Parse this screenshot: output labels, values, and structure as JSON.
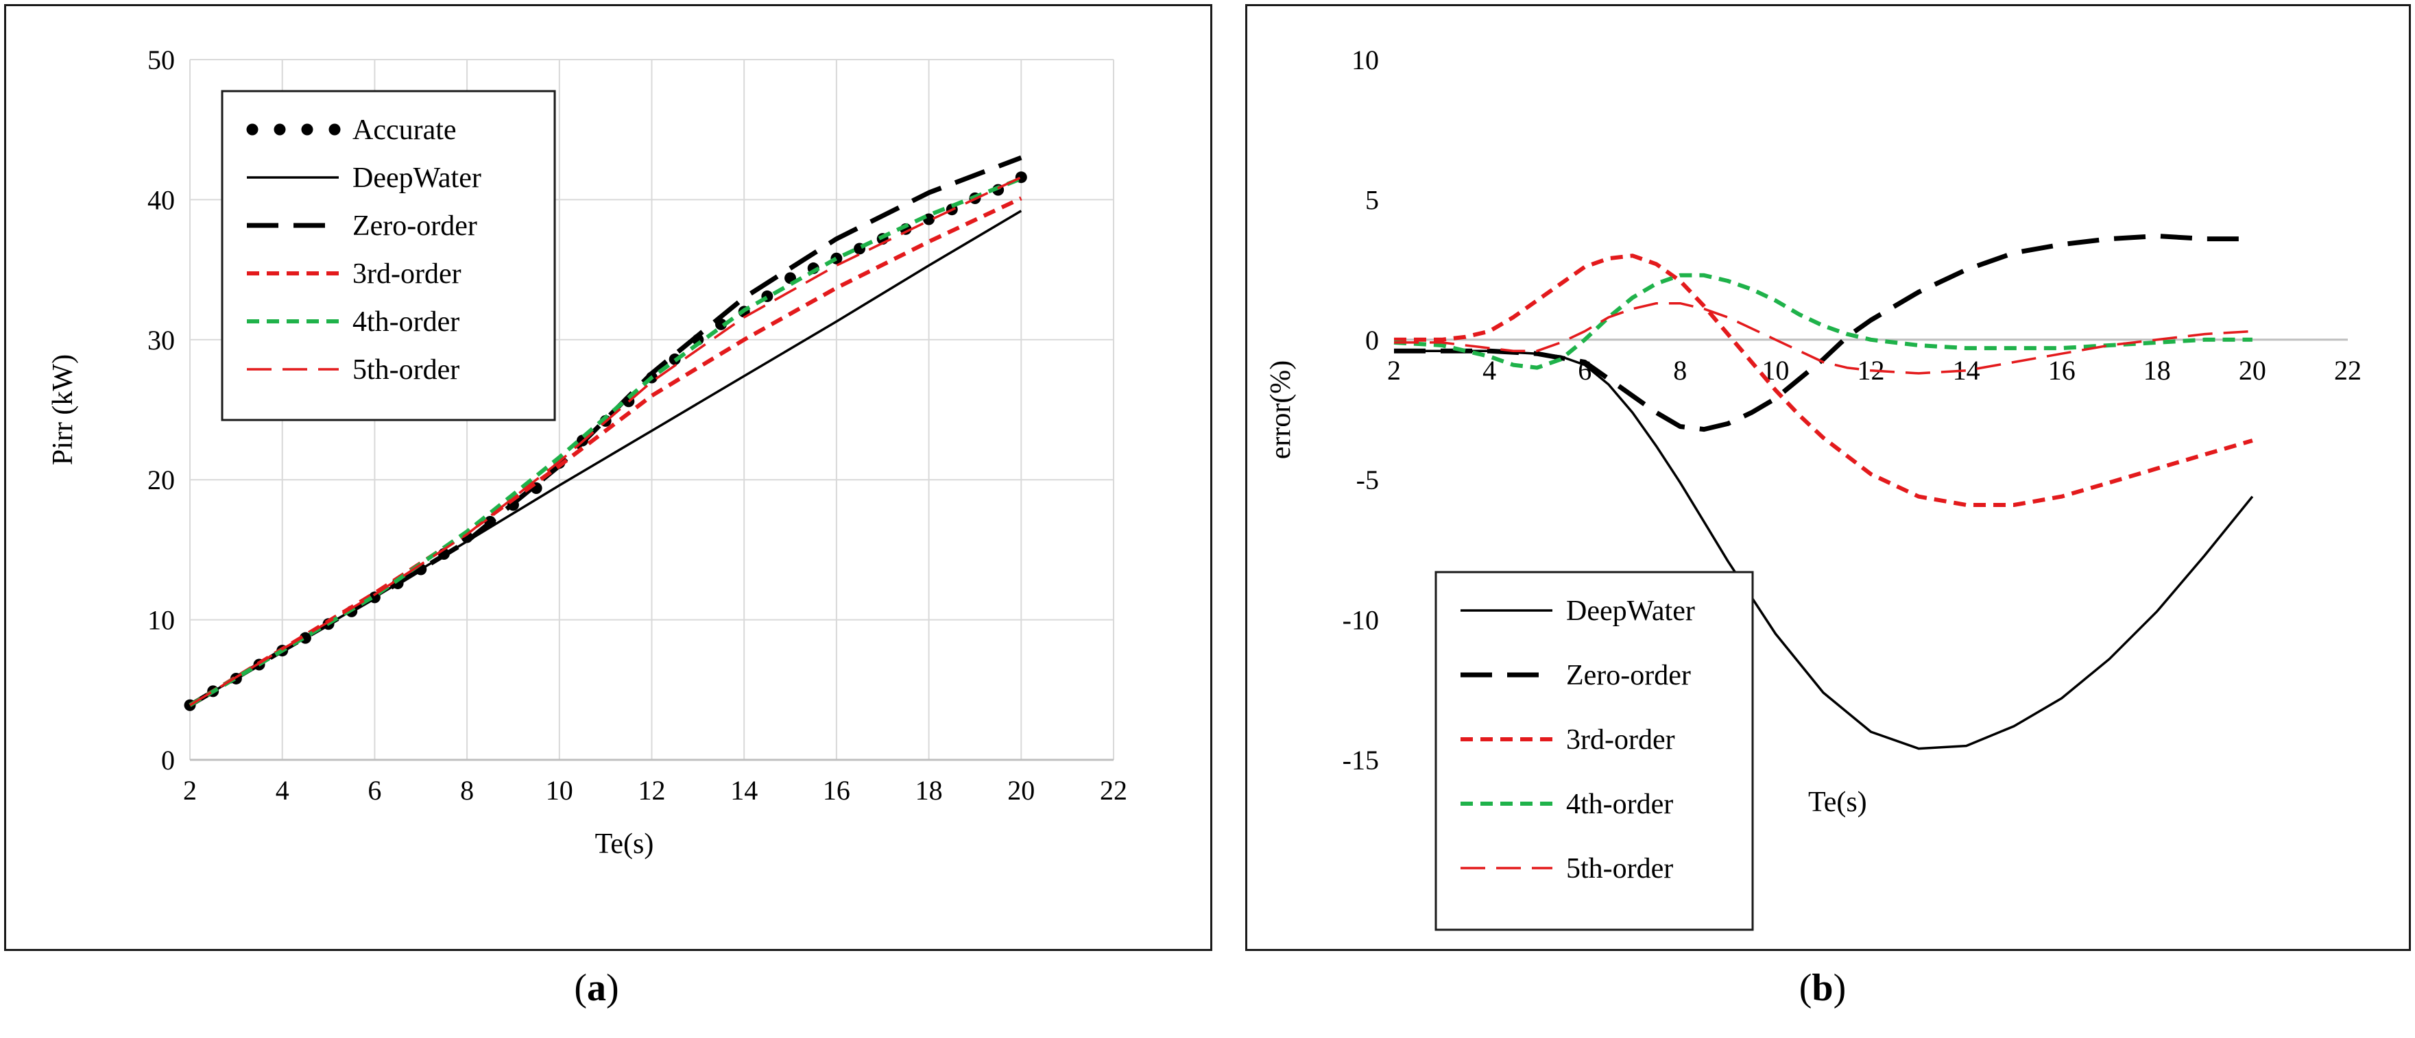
{
  "chart_data": [
    {
      "id": "a",
      "type": "line",
      "panel_label": "a",
      "xlabel": "Te(s)",
      "ylabel": "Pirr (kW)",
      "xlim": [
        2,
        22
      ],
      "ylim": [
        0,
        50
      ],
      "xticks": [
        2,
        4,
        6,
        8,
        10,
        12,
        14,
        16,
        18,
        20,
        22
      ],
      "yticks": [
        0,
        10,
        20,
        30,
        40,
        50
      ],
      "grid": true,
      "legend_position": "top-left",
      "series": [
        {
          "name": "Accurate",
          "style": "dots",
          "color": "#000000",
          "x": [
            2,
            2.5,
            3,
            3.5,
            4,
            4.5,
            5,
            5.5,
            6,
            6.5,
            7,
            7.5,
            8,
            8.5,
            9,
            9.5,
            10,
            10.5,
            11,
            11.5,
            12,
            12.5,
            13,
            13.5,
            14,
            14.5,
            15,
            15.5,
            16,
            16.5,
            17,
            17.5,
            18,
            18.5,
            19,
            19.5,
            20
          ],
          "y": [
            3.9,
            4.9,
            5.8,
            6.8,
            7.8,
            8.7,
            9.7,
            10.6,
            11.6,
            12.6,
            13.6,
            14.7,
            15.9,
            17.0,
            18.2,
            19.4,
            21.2,
            22.8,
            24.2,
            25.6,
            27.3,
            28.6,
            30.0,
            31.1,
            32.0,
            33.1,
            34.4,
            35.1,
            35.8,
            36.5,
            37.2,
            37.9,
            38.6,
            39.3,
            40.1,
            40.7,
            41.6
          ]
        },
        {
          "name": "DeepWater",
          "style": "solid",
          "color": "#000000",
          "x": [
            2,
            4,
            6,
            8,
            10,
            12,
            14,
            16,
            18,
            20
          ],
          "y": [
            3.9,
            7.8,
            11.6,
            15.6,
            19.6,
            23.5,
            27.4,
            31.3,
            35.3,
            39.2
          ]
        },
        {
          "name": "Zero-order",
          "style": "longdash",
          "color": "#000000",
          "x": [
            2,
            4,
            6,
            8,
            10,
            12,
            14,
            16,
            18,
            20
          ],
          "y": [
            3.9,
            7.8,
            11.6,
            15.6,
            21.0,
            27.6,
            33.0,
            37.2,
            40.5,
            43.0
          ]
        },
        {
          "name": "3rd-order",
          "style": "dash",
          "color": "#e31a1c",
          "x": [
            2,
            4,
            6,
            8,
            10,
            12,
            14,
            16,
            18,
            20
          ],
          "y": [
            3.9,
            7.9,
            11.9,
            16.2,
            21.0,
            26.0,
            30.0,
            33.7,
            37.0,
            40.1
          ]
        },
        {
          "name": "4th-order",
          "style": "dash",
          "color": "#1fb24a",
          "x": [
            2,
            4,
            6,
            8,
            10,
            12,
            14,
            16,
            18,
            20
          ],
          "y": [
            3.9,
            7.8,
            11.7,
            16.3,
            21.6,
            27.3,
            32.1,
            35.8,
            38.9,
            41.5
          ]
        },
        {
          "name": "5th-order",
          "style": "thindash",
          "color": "#e31a1c",
          "x": [
            2,
            4,
            6,
            8,
            10,
            12,
            14,
            16,
            18,
            20
          ],
          "y": [
            3.9,
            7.9,
            11.8,
            16.1,
            21.3,
            27.0,
            31.6,
            35.3,
            38.5,
            41.6
          ]
        }
      ]
    },
    {
      "id": "b",
      "type": "line",
      "panel_label": "b",
      "xlabel": "Te(s)",
      "ylabel": "error(%)",
      "xlim": [
        2,
        22
      ],
      "ylim": [
        -15,
        10
      ],
      "xticks": [
        2,
        4,
        6,
        8,
        10,
        12,
        14,
        16,
        18,
        20,
        22
      ],
      "yticks": [
        -15,
        -10,
        -5,
        0,
        5,
        10
      ],
      "grid": false,
      "legend_position": "bottom-left",
      "series": [
        {
          "name": "DeepWater",
          "style": "solid",
          "color": "#000000",
          "x": [
            2,
            3,
            4,
            5,
            5.5,
            6,
            6.5,
            7,
            7.5,
            8,
            8.5,
            9,
            9.5,
            10,
            11,
            12,
            13,
            14,
            15,
            16,
            17,
            18,
            19,
            20
          ],
          "y": [
            -0.4,
            -0.4,
            -0.4,
            -0.5,
            -0.6,
            -0.9,
            -1.6,
            -2.6,
            -3.8,
            -5.1,
            -6.5,
            -7.9,
            -9.2,
            -10.5,
            -12.6,
            -14.0,
            -14.6,
            -14.5,
            -13.8,
            -12.8,
            -11.4,
            -9.7,
            -7.7,
            -5.6
          ]
        },
        {
          "name": "Zero-order",
          "style": "longdash",
          "color": "#000000",
          "x": [
            2,
            3,
            4,
            5,
            6,
            6.5,
            7,
            7.5,
            8,
            8.5,
            9,
            9.5,
            10,
            10.5,
            11,
            11.5,
            12,
            13,
            14,
            15,
            16,
            17,
            18,
            19,
            20
          ],
          "y": [
            -0.4,
            -0.4,
            -0.4,
            -0.5,
            -0.8,
            -1.4,
            -2.0,
            -2.6,
            -3.1,
            -3.2,
            -3.0,
            -2.6,
            -2.1,
            -1.4,
            -0.7,
            0.1,
            0.7,
            1.7,
            2.5,
            3.1,
            3.4,
            3.6,
            3.7,
            3.6,
            3.6
          ]
        },
        {
          "name": "3rd-order",
          "style": "dash",
          "color": "#e31a1c",
          "x": [
            2,
            3,
            3.5,
            4,
            4.5,
            5,
            5.5,
            6,
            6.5,
            7,
            7.5,
            8,
            8.5,
            9,
            9.5,
            10,
            10.5,
            11,
            12,
            13,
            14,
            15,
            16,
            17,
            18,
            19,
            20
          ],
          "y": [
            0.0,
            0.0,
            0.1,
            0.3,
            0.8,
            1.4,
            2.0,
            2.6,
            2.9,
            3.0,
            2.7,
            2.1,
            1.2,
            0.2,
            -0.8,
            -1.8,
            -2.7,
            -3.5,
            -4.8,
            -5.6,
            -5.9,
            -5.9,
            -5.6,
            -5.1,
            -4.6,
            -4.1,
            -3.6
          ]
        },
        {
          "name": "4th-order",
          "style": "dash",
          "color": "#1fb24a",
          "x": [
            2,
            3,
            4,
            4.5,
            5,
            5.5,
            6,
            6.5,
            7,
            7.5,
            8,
            8.5,
            9,
            9.5,
            10,
            10.5,
            11,
            11.5,
            12,
            13,
            14,
            15,
            16,
            17,
            18,
            19,
            20
          ],
          "y": [
            -0.1,
            -0.2,
            -0.6,
            -0.9,
            -1.0,
            -0.7,
            0.0,
            0.8,
            1.5,
            2.0,
            2.3,
            2.3,
            2.1,
            1.8,
            1.4,
            0.9,
            0.5,
            0.2,
            0.0,
            -0.2,
            -0.3,
            -0.3,
            -0.3,
            -0.2,
            -0.1,
            0.0,
            0.0
          ]
        },
        {
          "name": "5th-order",
          "style": "thindash",
          "color": "#e31a1c",
          "x": [
            2,
            3,
            4,
            4.5,
            5,
            5.5,
            6,
            6.5,
            7,
            7.5,
            8,
            8.5,
            9,
            9.5,
            10,
            10.5,
            11,
            11.5,
            12,
            13,
            14,
            15,
            16,
            17,
            18,
            19,
            20
          ],
          "y": [
            -0.1,
            -0.1,
            -0.3,
            -0.4,
            -0.4,
            -0.1,
            0.3,
            0.8,
            1.1,
            1.3,
            1.3,
            1.1,
            0.8,
            0.4,
            0.0,
            -0.4,
            -0.8,
            -1.0,
            -1.1,
            -1.2,
            -1.1,
            -0.8,
            -0.5,
            -0.2,
            0.0,
            0.2,
            0.3
          ]
        }
      ]
    }
  ]
}
